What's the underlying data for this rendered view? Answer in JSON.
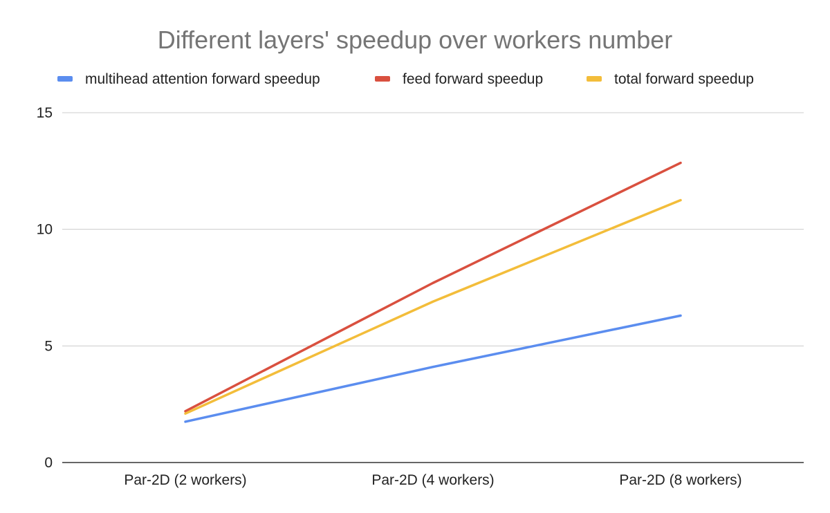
{
  "chart_data": {
    "type": "line",
    "title": "Different layers' speedup over workers number",
    "xlabel": "",
    "ylabel": "",
    "categories": [
      "Par-2D (2 workers)",
      "Par-2D (4 workers)",
      "Par-2D (8 workers)"
    ],
    "ylim": [
      0,
      15
    ],
    "yticks": [
      0,
      5,
      10,
      15
    ],
    "grid": true,
    "legend_position": "top",
    "series": [
      {
        "name": "multihead attention forward speedup",
        "color": "#5b8def",
        "values": [
          1.75,
          4.1,
          6.3
        ]
      },
      {
        "name": "feed forward speedup",
        "color": "#d9503f",
        "values": [
          2.2,
          7.7,
          12.85
        ]
      },
      {
        "name": "total forward speedup",
        "color": "#f3bd3a",
        "values": [
          2.1,
          6.9,
          11.25
        ]
      }
    ]
  }
}
